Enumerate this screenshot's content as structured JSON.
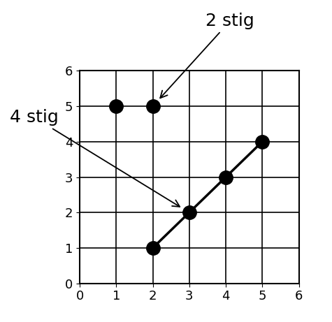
{
  "chart_data": {
    "type": "scatter",
    "xlim": [
      0,
      6
    ],
    "ylim": [
      0,
      6
    ],
    "xticks": [
      0,
      1,
      2,
      3,
      4,
      5,
      6
    ],
    "yticks": [
      0,
      1,
      2,
      3,
      4,
      5,
      6
    ],
    "grid": true,
    "series": [
      {
        "x": [
          1,
          2
        ],
        "values": [
          5,
          5
        ],
        "color": "#000000",
        "marker": "o",
        "line_style": "none"
      },
      {
        "x": [
          2,
          3,
          4,
          5
        ],
        "values": [
          1,
          2,
          3,
          4
        ],
        "color": "#000000",
        "marker": "o",
        "line_style": "solid"
      }
    ],
    "annotations": [
      {
        "text": "2 stig",
        "series": 0
      },
      {
        "text": "4 stig",
        "series": 1
      }
    ]
  }
}
